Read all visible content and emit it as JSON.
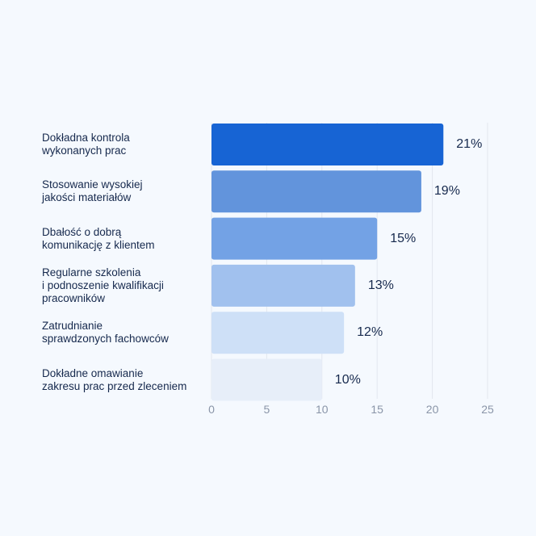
{
  "chart_data": {
    "type": "bar",
    "orientation": "horizontal",
    "categories": [
      "Dokładna kontrola\nwykonanych prac",
      "Stosowanie wysokiej\njakości materiałów",
      "Dbałość o dobrą\nkomunikację z klientem",
      "Regularne szkolenia\ni podnoszenie kwalifikacji\npracowników",
      "Zatrudnianie\nsprawdzonych fachowców",
      "Dokładne omawianie\nzakresu prac przed zleceniem"
    ],
    "values": [
      21,
      19,
      15,
      13,
      12,
      10
    ],
    "value_labels": [
      "21%",
      "19%",
      "15%",
      "13%",
      "12%",
      "10%"
    ],
    "bar_colors": [
      "#1764d4",
      "#6294dc",
      "#73a2e5",
      "#a1c1ee",
      "#cee0f7",
      "#e7eef9"
    ],
    "xlim": [
      0,
      25
    ],
    "xticks": [
      "0",
      "5",
      "10",
      "15",
      "20",
      "25"
    ],
    "grid": true,
    "title": "",
    "xlabel": "",
    "ylabel": ""
  }
}
